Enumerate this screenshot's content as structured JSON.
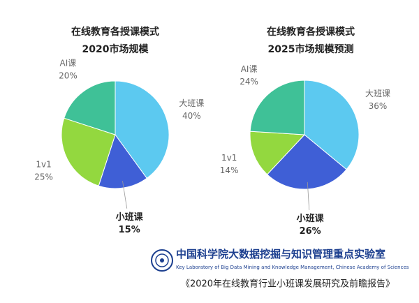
{
  "chart_data": [
    {
      "type": "pie",
      "title": "在线教育各授课模式",
      "subtitle": "2020市场规模",
      "categories": [
        "大班课",
        "小班课",
        "1v1",
        "AI课"
      ],
      "values": [
        40,
        15,
        25,
        20
      ],
      "value_labels": [
        "40%",
        "15%",
        "25%",
        "20%"
      ],
      "colors": [
        "#5cc9f0",
        "#3f5fd6",
        "#93d83f",
        "#3fc197"
      ]
    },
    {
      "type": "pie",
      "title": "在线教育各授课模式",
      "subtitle": "2025市场规模预测",
      "categories": [
        "大班课",
        "小班课",
        "1v1",
        "AI课"
      ],
      "values": [
        36,
        26,
        14,
        24
      ],
      "value_labels": [
        "36%",
        "26%",
        "14%",
        "24%"
      ],
      "colors": [
        "#5cc9f0",
        "#3f5fd6",
        "#93d83f",
        "#3fc197"
      ]
    }
  ],
  "footer": {
    "institution": "中国科学院大数据挖掘与知识管理重点实验室",
    "institution_en": "Key Laboratory of Big Data Mining and Knowledge Management, Chinese Academy of Sciences",
    "report": "《2020年在线教育行业小班课发展研究及前瞻报告》"
  }
}
